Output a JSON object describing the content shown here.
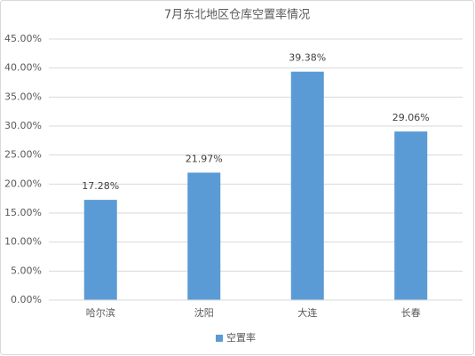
{
  "chart_data": {
    "type": "bar",
    "title": "7月东北地区仓库空置率情况",
    "categories": [
      "哈尔滨",
      "沈阳",
      "大连",
      "长春"
    ],
    "series": [
      {
        "name": "空置率",
        "color": "#5b9bd5",
        "values": [
          17.28,
          21.97,
          39.38,
          29.06
        ],
        "value_labels": [
          "17.28%",
          "21.97%",
          "39.38%",
          "29.06%"
        ]
      }
    ],
    "ylim": [
      0,
      45
    ],
    "yticks": [
      {
        "value": 0,
        "label": "0.00%"
      },
      {
        "value": 5,
        "label": "5.00%"
      },
      {
        "value": 10,
        "label": "10.00%"
      },
      {
        "value": 15,
        "label": "15.00%"
      },
      {
        "value": 20,
        "label": "20.00%"
      },
      {
        "value": 25,
        "label": "25.00%"
      },
      {
        "value": 30,
        "label": "30.00%"
      },
      {
        "value": 35,
        "label": "35.00%"
      },
      {
        "value": 40,
        "label": "40.00%"
      },
      {
        "value": 45,
        "label": "45.00%"
      }
    ],
    "grid": true,
    "legend": "bottom"
  }
}
